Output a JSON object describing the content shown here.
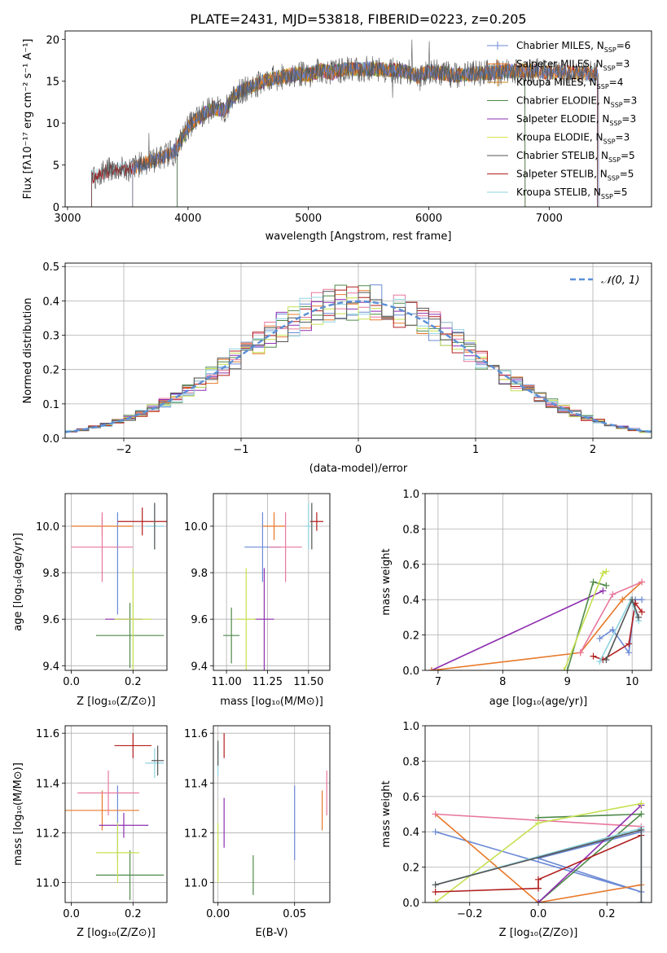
{
  "title": "PLATE=2431, MJD=53818, FIBERID=0223, z=0.205",
  "colors": {
    "Chabrier MILES": "#6c8ad6",
    "Salpeter MILES": "#e8782a",
    "Kroupa MILES": "#c8871f",
    "Chabrier ELODIE": "#4f8a4a",
    "Salpeter ELODIE": "#8e2fb0",
    "Kroupa ELODIE": "#d9e24a",
    "Chabrier STELIB": "#555555",
    "Salpeter STELIB": "#b21f1f",
    "Kroupa STELIB": "#8fd3e0",
    "extra_pink": "#e8779e",
    "extra_lime": "#c5e050"
  },
  "chart_data": [
    {
      "type": "line",
      "id": "spectrum",
      "xlabel": "wavelength [Angstrom, rest frame]",
      "ylabel": "Flux [f_λ 10^-17 erg cm^-2 s^-1 A^-1]",
      "xlim": [
        2980,
        7850
      ],
      "ylim": [
        0,
        21
      ],
      "xticks": [
        "3000",
        "4000",
        "5000",
        "6000",
        "7000"
      ],
      "yticks": [
        "0",
        "5",
        "10",
        "15",
        "20"
      ],
      "legend_position": "right",
      "legend": [
        {
          "name": "Chabrier MILES",
          "label": "Chabrier MILES, N",
          "sub": "SSP",
          "suffix": "=6"
        },
        {
          "name": "Salpeter MILES",
          "label": "Salpeter MILES, N",
          "sub": "SSP",
          "suffix": "=3"
        },
        {
          "name": "Kroupa MILES",
          "label": "Kroupa MILES, N",
          "sub": "SSP",
          "suffix": "=4"
        },
        {
          "name": "Chabrier ELODIE",
          "label": "Chabrier ELODIE, N",
          "sub": "SSP",
          "suffix": "=3"
        },
        {
          "name": "Salpeter ELODIE",
          "label": "Salpeter ELODIE, N",
          "sub": "SSP",
          "suffix": "=3"
        },
        {
          "name": "Kroupa ELODIE",
          "label": "Kroupa ELODIE, N",
          "sub": "SSP",
          "suffix": "=3"
        },
        {
          "name": "Chabrier STELIB",
          "label": "Chabrier STELIB, N",
          "sub": "SSP",
          "suffix": "=5"
        },
        {
          "name": "Salpeter STELIB",
          "label": "Salpeter STELIB, N",
          "sub": "SSP",
          "suffix": "=5"
        },
        {
          "name": "Kroupa STELIB",
          "label": "Kroupa STELIB, N",
          "sub": "SSP",
          "suffix": "=5"
        }
      ],
      "continuum": [
        [
          3200,
          3.5
        ],
        [
          3300,
          4.2
        ],
        [
          3400,
          4.5
        ],
        [
          3500,
          4.4
        ],
        [
          3600,
          5.0
        ],
        [
          3700,
          5.5
        ],
        [
          3800,
          6.0
        ],
        [
          3900,
          6.8
        ],
        [
          4000,
          9.5
        ],
        [
          4100,
          10.8
        ],
        [
          4200,
          11.8
        ],
        [
          4300,
          11.5
        ],
        [
          4400,
          13.5
        ],
        [
          4500,
          14.2
        ],
        [
          4600,
          14.8
        ],
        [
          4700,
          15.3
        ],
        [
          4800,
          15.6
        ],
        [
          4900,
          15.9
        ],
        [
          5000,
          15.7
        ],
        [
          5100,
          16.3
        ],
        [
          5200,
          16.0
        ],
        [
          5300,
          16.5
        ],
        [
          5400,
          16.4
        ],
        [
          5500,
          16.5
        ],
        [
          5600,
          16.4
        ],
        [
          5700,
          16.3
        ],
        [
          5800,
          16.2
        ],
        [
          5900,
          15.6
        ],
        [
          6000,
          16.1
        ],
        [
          6100,
          16.0
        ],
        [
          6200,
          15.7
        ],
        [
          6300,
          15.8
        ],
        [
          6400,
          15.9
        ],
        [
          6500,
          16.0
        ],
        [
          6600,
          16.1
        ],
        [
          6700,
          16.2
        ],
        [
          6800,
          16.3
        ],
        [
          6900,
          16.2
        ],
        [
          7000,
          16.0
        ],
        [
          7100,
          16.1
        ],
        [
          7200,
          16.0
        ],
        [
          7300,
          15.9
        ],
        [
          7400,
          15.8
        ]
      ],
      "model_ranges": {
        "Chabrier MILES": [
          3540,
          7410
        ],
        "Salpeter MILES": [
          3540,
          7410
        ],
        "Kroupa MILES": [
          3540,
          7410
        ],
        "Chabrier ELODIE": [
          3910,
          6800
        ],
        "Salpeter ELODIE": [
          3910,
          6800
        ],
        "Kroupa ELODIE": [
          3910,
          6800
        ],
        "Chabrier STELIB": [
          3200,
          7400
        ],
        "Salpeter STELIB": [
          3200,
          7400
        ],
        "Kroupa STELIB": [
          3200,
          7400
        ]
      }
    },
    {
      "type": "bar",
      "id": "residual-histogram",
      "xlabel": "(data-model)/error",
      "ylabel": "Normed distribution",
      "xlim": [
        -2.5,
        2.5
      ],
      "ylim": [
        0,
        0.51
      ],
      "xticks": [
        "−2",
        "−1",
        "0",
        "1",
        "2"
      ],
      "yticks": [
        "0.0",
        "0.1",
        "0.2",
        "0.3",
        "0.4",
        "0.5"
      ],
      "legend_label": "N(0,1)",
      "legend_position": "top-right",
      "bin_width": 0.1
    },
    {
      "type": "scatter",
      "id": "age-vs-metallicity",
      "xlabel": "Z [log10(Z/Z⊙)]",
      "ylabel": "age [log10(age/yr)]",
      "xlim": [
        -0.02,
        0.31
      ],
      "ylim": [
        9.38,
        10.14
      ],
      "xticks": [
        "0.0",
        "0.2"
      ],
      "yticks": [
        "9.4",
        "9.6",
        "9.8",
        "10.0"
      ],
      "points": [
        {
          "c": "Chabrier MILES",
          "x": 0.15,
          "y": 9.84,
          "xe": 0.0,
          "ye": 0.22
        },
        {
          "c": "Salpeter MILES",
          "x": 0.1,
          "y": 10.0,
          "xe": 0.1,
          "ye": 0.04
        },
        {
          "c": "extra_pink",
          "x": 0.1,
          "y": 9.91,
          "xe": 0.1,
          "ye": 0.15
        },
        {
          "c": "Chabrier ELODIE",
          "x": 0.19,
          "y": 9.53,
          "xe": 0.11,
          "ye": 0.14
        },
        {
          "c": "Salpeter ELODIE",
          "x": 0.17,
          "y": 9.6,
          "xe": 0.06,
          "ye": 0.0
        },
        {
          "c": "extra_lime",
          "x": 0.2,
          "y": 9.6,
          "xe": 0.06,
          "ye": 0.22
        },
        {
          "c": "Salpeter STELIB",
          "x": 0.23,
          "y": 10.02,
          "xe": 0.08,
          "ye": 0.06
        },
        {
          "c": "Kroupa STELIB",
          "x": 0.27,
          "y": 10.0,
          "xe": 0.03,
          "ye": 0.1
        },
        {
          "c": "Chabrier STELIB",
          "x": 0.27,
          "y": 10.0,
          "xe": 0.0,
          "ye": 0.1
        }
      ]
    },
    {
      "type": "scatter",
      "id": "age-vs-mass",
      "xlabel": "mass [log10(M/M⊙)]",
      "ylabel": "",
      "xlim": [
        10.92,
        11.63
      ],
      "ylim": [
        9.38,
        10.14
      ],
      "xticks": [
        "11.00",
        "11.25",
        "11.50"
      ],
      "yticks": [
        "9.4",
        "9.6",
        "9.8",
        "10.0"
      ],
      "points": [
        {
          "c": "Chabrier MILES",
          "x": 11.22,
          "y": 9.91,
          "xe": 0.11,
          "ye": 0.15
        },
        {
          "c": "Salpeter MILES",
          "x": 11.29,
          "y": 10.0,
          "xe": 0.07,
          "ye": 0.06
        },
        {
          "c": "extra_pink",
          "x": 11.36,
          "y": 9.91,
          "xe": 0.1,
          "ye": 0.15
        },
        {
          "c": "Chabrier ELODIE",
          "x": 11.03,
          "y": 9.53,
          "xe": 0.05,
          "ye": 0.12
        },
        {
          "c": "Salpeter ELODIE",
          "x": 11.23,
          "y": 9.6,
          "xe": 0.06,
          "ye": 0.22
        },
        {
          "c": "extra_lime",
          "x": 11.12,
          "y": 9.6,
          "xe": 0.06,
          "ye": 0.22
        },
        {
          "c": "Salpeter STELIB",
          "x": 11.55,
          "y": 10.02,
          "xe": 0.04,
          "ye": 0.04
        },
        {
          "c": "Kroupa STELIB",
          "x": 11.5,
          "y": 10.0,
          "xe": 0.02,
          "ye": 0.1
        },
        {
          "c": "Chabrier STELIB",
          "x": 11.52,
          "y": 10.0,
          "xe": 0.0,
          "ye": 0.1
        }
      ]
    },
    {
      "type": "line",
      "id": "mass-weight-vs-age",
      "xlabel": "age [log10(age/yr)]",
      "ylabel": "mass weight",
      "xlim": [
        6.8,
        10.3
      ],
      "ylim": [
        0.0,
        1.0
      ],
      "xticks": [
        "7",
        "8",
        "9",
        "10"
      ],
      "yticks": [
        "0.0",
        "0.2",
        "0.4",
        "0.6",
        "0.8",
        "1.0"
      ],
      "series": [
        {
          "c": "Salpeter ELODIE",
          "x": [
            6.9,
            9.55
          ],
          "y": [
            0.0,
            0.45
          ]
        },
        {
          "c": "Salpeter MILES",
          "x": [
            6.9,
            9.2,
            9.85,
            10.15
          ],
          "y": [
            0.0,
            0.1,
            0.4,
            0.5
          ]
        },
        {
          "c": "Chabrier MILES",
          "x": [
            9.5,
            9.7,
            9.95,
            10.05,
            10.15
          ],
          "y": [
            0.18,
            0.23,
            0.1,
            0.4,
            0.4
          ]
        },
        {
          "c": "extra_pink",
          "x": [
            9.2,
            9.7,
            10.15
          ],
          "y": [
            0.1,
            0.43,
            0.5
          ]
        },
        {
          "c": "Chabrier ELODIE",
          "x": [
            9.0,
            9.4,
            9.6
          ],
          "y": [
            0.0,
            0.5,
            0.48
          ]
        },
        {
          "c": "extra_lime",
          "x": [
            8.95,
            9.55,
            9.6
          ],
          "y": [
            0.0,
            0.55,
            0.56
          ]
        },
        {
          "c": "Salpeter STELIB",
          "x": [
            9.4,
            9.55,
            9.95,
            10.05,
            10.15
          ],
          "y": [
            0.08,
            0.06,
            0.15,
            0.38,
            0.33
          ]
        },
        {
          "c": "Kroupa STELIB",
          "x": [
            9.5,
            9.98,
            10.1
          ],
          "y": [
            0.05,
            0.4,
            0.28
          ]
        },
        {
          "c": "Chabrier STELIB",
          "x": [
            9.6,
            10.0,
            10.1
          ],
          "y": [
            0.06,
            0.4,
            0.3
          ]
        }
      ]
    },
    {
      "type": "scatter",
      "id": "mass-vs-metallicity",
      "xlabel": "Z [log10(Z/Z⊙)]",
      "ylabel": "mass [log10(M/M⊙)]",
      "xlim": [
        -0.02,
        0.31
      ],
      "ylim": [
        10.92,
        11.63
      ],
      "xticks": [
        "0.0",
        "0.2"
      ],
      "yticks": [
        "11.0",
        "11.2",
        "11.4",
        "11.6"
      ],
      "points": [
        {
          "c": "Chabrier MILES",
          "x": 0.15,
          "y": 11.24,
          "xe": 0.0,
          "ye": 0.15
        },
        {
          "c": "Salpeter MILES",
          "x": 0.1,
          "y": 11.29,
          "xe": 0.12,
          "ye": 0.08
        },
        {
          "c": "extra_pink",
          "x": 0.12,
          "y": 11.36,
          "xe": 0.1,
          "ye": 0.09
        },
        {
          "c": "Chabrier ELODIE",
          "x": 0.19,
          "y": 11.03,
          "xe": 0.11,
          "ye": 0.1
        },
        {
          "c": "Salpeter ELODIE",
          "x": 0.17,
          "y": 11.23,
          "xe": 0.08,
          "ye": 0.05
        },
        {
          "c": "extra_lime",
          "x": 0.15,
          "y": 11.12,
          "xe": 0.07,
          "ye": 0.12
        },
        {
          "c": "Salpeter STELIB",
          "x": 0.2,
          "y": 11.55,
          "xe": 0.06,
          "ye": 0.05
        },
        {
          "c": "Kroupa STELIB",
          "x": 0.27,
          "y": 11.48,
          "xe": 0.03,
          "ye": 0.06
        },
        {
          "c": "Chabrier STELIB",
          "x": 0.28,
          "y": 11.49,
          "xe": 0.02,
          "ye": 0.06
        }
      ]
    },
    {
      "type": "scatter",
      "id": "mass-vs-extinction",
      "xlabel": "E(B-V)",
      "ylabel": "",
      "xlim": [
        -0.003,
        0.073
      ],
      "ylim": [
        10.92,
        11.63
      ],
      "xticks": [
        "0.00",
        "0.05"
      ],
      "yticks": [
        "11.0",
        "11.2",
        "11.4",
        "11.6"
      ],
      "points": [
        {
          "c": "Chabrier MILES",
          "x": 0.05,
          "y": 11.24,
          "xe": 0.0,
          "ye": 0.15
        },
        {
          "c": "Salpeter MILES",
          "x": 0.068,
          "y": 11.29,
          "xe": 0.0,
          "ye": 0.08
        },
        {
          "c": "extra_pink",
          "x": 0.071,
          "y": 11.36,
          "xe": 0.0,
          "ye": 0.09
        },
        {
          "c": "Chabrier ELODIE",
          "x": 0.023,
          "y": 11.03,
          "xe": 0.0,
          "ye": 0.08
        },
        {
          "c": "Salpeter ELODIE",
          "x": 0.004,
          "y": 11.24,
          "xe": 0.0,
          "ye": 0.1
        },
        {
          "c": "extra_lime",
          "x": 0.0,
          "y": 11.12,
          "xe": 0.0,
          "ye": 0.12
        },
        {
          "c": "Salpeter STELIB",
          "x": 0.004,
          "y": 11.55,
          "xe": 0.0,
          "ye": 0.05
        },
        {
          "c": "Kroupa STELIB",
          "x": 0.0,
          "y": 11.49,
          "xe": 0.0,
          "ye": 0.06
        },
        {
          "c": "Chabrier STELIB",
          "x": 0.0,
          "y": 11.52,
          "xe": 0.0,
          "ye": 0.05
        }
      ]
    },
    {
      "type": "line",
      "id": "mass-weight-vs-metallicity",
      "xlabel": "Z [log10(Z/Z⊙)]",
      "ylabel": "mass weight",
      "xlim": [
        -0.33,
        0.33
      ],
      "ylim": [
        0.0,
        1.0
      ],
      "xticks": [
        "−0.2",
        "0.0",
        "0.2"
      ],
      "yticks": [
        "0.0",
        "0.2",
        "0.4",
        "0.6",
        "0.8",
        "1.0"
      ],
      "series": [
        {
          "c": "Chabrier MILES",
          "x": [
            -0.3,
            0.3,
            0.0,
            0.3
          ],
          "y": [
            0.4,
            0.06,
            0.25,
            0.4
          ]
        },
        {
          "c": "Salpeter MILES",
          "x": [
            -0.3,
            0.0,
            0.3
          ],
          "y": [
            0.5,
            0.0,
            0.1
          ]
        },
        {
          "c": "extra_pink",
          "x": [
            -0.3,
            0.3
          ],
          "y": [
            0.5,
            0.43
          ]
        },
        {
          "c": "Chabrier ELODIE",
          "x": [
            0.0,
            0.3,
            0.0
          ],
          "y": [
            0.48,
            0.5,
            0.0
          ]
        },
        {
          "c": "Salpeter ELODIE",
          "x": [
            0.0,
            0.3
          ],
          "y": [
            0.0,
            0.55
          ]
        },
        {
          "c": "extra_lime",
          "x": [
            -0.3,
            0.0,
            0.3
          ],
          "y": [
            0.0,
            0.45,
            0.56
          ]
        },
        {
          "c": "Salpeter STELIB",
          "x": [
            -0.3,
            0.0,
            0.0,
            0.3
          ],
          "y": [
            0.06,
            0.08,
            0.13,
            0.38
          ]
        },
        {
          "c": "Kroupa STELIB",
          "x": [
            -0.3,
            0.3,
            0.3
          ],
          "y": [
            0.1,
            0.42,
            0.0
          ]
        },
        {
          "c": "Chabrier STELIB",
          "x": [
            -0.3,
            0.3,
            0.3
          ],
          "y": [
            0.1,
            0.41,
            0.0
          ]
        }
      ]
    }
  ]
}
